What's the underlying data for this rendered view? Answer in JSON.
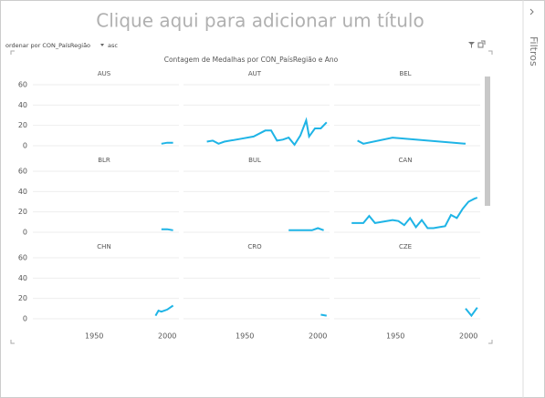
{
  "header": {
    "title": "Clique aqui para adicionar um título",
    "sort_label": "ordenar por CON_PaísRegião",
    "sort_order": "asc",
    "filters": "Filtros"
  },
  "chart_data": {
    "type": "line",
    "title": "Contagem de Medalhas por CON_PaísRegião e Ano",
    "color": "#1eb4e6",
    "xlim": [
      1908,
      2008
    ],
    "xticks": [
      1950,
      2000
    ],
    "ylim": [
      0,
      60
    ],
    "yticks": [
      0,
      20,
      40,
      60
    ],
    "grid": true,
    "facets": [
      {
        "name": "AUS",
        "x": [
          1996,
          2000,
          2004
        ],
        "values": [
          2,
          3,
          3
        ]
      },
      {
        "name": "AUT",
        "x": [
          1924,
          1928,
          1932,
          1936,
          1948,
          1956,
          1964,
          1968,
          1972,
          1976,
          1980,
          1984,
          1988,
          1992,
          1994,
          1998,
          2002,
          2006
        ],
        "values": [
          4,
          5,
          2,
          4,
          7,
          9,
          15,
          15,
          5,
          6,
          8,
          1,
          10,
          25,
          9,
          17,
          17,
          23
        ]
      },
      {
        "name": "BEL",
        "x": [
          1924,
          1928,
          1948,
          1998
        ],
        "values": [
          5,
          2,
          8,
          2
        ]
      },
      {
        "name": "BLR",
        "x": [
          1996,
          2000,
          2004
        ],
        "values": [
          3,
          3,
          2
        ]
      },
      {
        "name": "BUL",
        "x": [
          1980,
          1988,
          1992,
          1996,
          2000,
          2004
        ],
        "values": [
          2,
          2,
          2,
          2,
          4,
          2
        ]
      },
      {
        "name": "CAN",
        "x": [
          1920,
          1924,
          1928,
          1932,
          1936,
          1948,
          1952,
          1956,
          1960,
          1964,
          1968,
          1972,
          1976,
          1980,
          1984,
          1988,
          1992,
          1996,
          2000,
          2004,
          2006
        ],
        "values": [
          9,
          9,
          9,
          16,
          9,
          12,
          11,
          7,
          14,
          5,
          12,
          4,
          4,
          5,
          6,
          17,
          14,
          23,
          30,
          33,
          34
        ]
      },
      {
        "name": "CHN",
        "x": [
          1992,
          1994,
          1996,
          2000,
          2004
        ],
        "values": [
          3,
          8,
          7,
          9,
          13
        ]
      },
      {
        "name": "CRO",
        "x": [
          2002,
          2006
        ],
        "values": [
          4,
          3
        ]
      },
      {
        "name": "CZE",
        "x": [
          1998,
          2002,
          2006
        ],
        "values": [
          10,
          3,
          11
        ]
      }
    ]
  }
}
